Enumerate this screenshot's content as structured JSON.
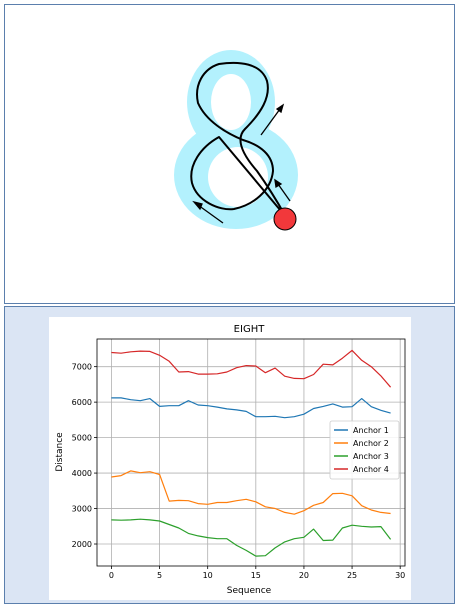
{
  "drawing": {
    "glyph": "8",
    "glyph_color": "#b3f1fd",
    "stroke_color": "#000000",
    "dot_color": "#f2383b"
  },
  "chart_data": {
    "type": "line",
    "title": "EIGHT",
    "xlabel": "Sequence",
    "ylabel": "Distance",
    "x": [
      0,
      1,
      2,
      3,
      4,
      5,
      6,
      7,
      8,
      9,
      10,
      11,
      12,
      13,
      14,
      15,
      16,
      17,
      18,
      19,
      20,
      21,
      22,
      23,
      24,
      25,
      26,
      27,
      28,
      29
    ],
    "xlim": [
      -1.5,
      30.5
    ],
    "ylim": [
      1380,
      7780
    ],
    "xticks": [
      0,
      5,
      10,
      15,
      20,
      25,
      30
    ],
    "yticks": [
      2000,
      3000,
      4000,
      5000,
      6000,
      7000
    ],
    "grid": true,
    "legend_position": "center-right",
    "series": [
      {
        "name": "Anchor 1",
        "color": "#1f77b4",
        "values": [
          6120,
          6120,
          6070,
          6040,
          6100,
          5880,
          5900,
          5900,
          6040,
          5920,
          5900,
          5860,
          5810,
          5780,
          5740,
          5590,
          5590,
          5600,
          5560,
          5590,
          5660,
          5820,
          5880,
          5950,
          5860,
          5870,
          6100,
          5870,
          5770,
          5690
        ]
      },
      {
        "name": "Anchor 2",
        "color": "#ff7f0e",
        "values": [
          3890,
          3930,
          4060,
          4010,
          4040,
          3960,
          3210,
          3230,
          3220,
          3140,
          3120,
          3170,
          3170,
          3220,
          3260,
          3190,
          3050,
          3000,
          2890,
          2840,
          2940,
          3090,
          3170,
          3420,
          3430,
          3360,
          3080,
          2960,
          2890,
          2860
        ]
      },
      {
        "name": "Anchor 3",
        "color": "#2ca02c",
        "values": [
          2680,
          2670,
          2680,
          2700,
          2680,
          2650,
          2550,
          2450,
          2300,
          2230,
          2180,
          2150,
          2150,
          1960,
          1820,
          1660,
          1670,
          1890,
          2060,
          2150,
          2190,
          2420,
          2100,
          2110,
          2450,
          2530,
          2500,
          2480,
          2490,
          2130
        ]
      },
      {
        "name": "Anchor 4",
        "color": "#d62728",
        "values": [
          7400,
          7380,
          7420,
          7440,
          7430,
          7320,
          7150,
          6850,
          6860,
          6790,
          6790,
          6800,
          6850,
          6970,
          7030,
          7020,
          6830,
          6960,
          6730,
          6670,
          6660,
          6780,
          7070,
          7050,
          7240,
          7460,
          7180,
          7000,
          6740,
          6420
        ]
      }
    ]
  }
}
